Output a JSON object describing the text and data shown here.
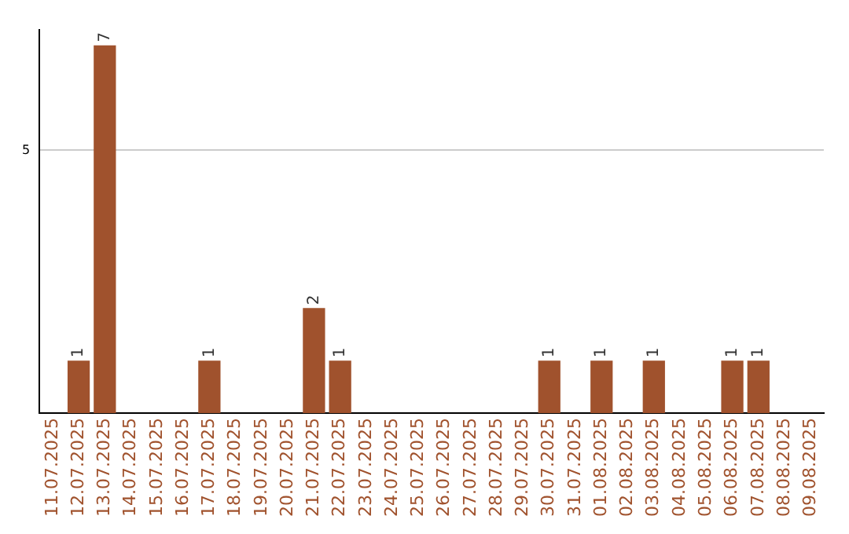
{
  "chart_data": {
    "type": "bar",
    "categories": [
      "11.07.2025",
      "12.07.2025",
      "13.07.2025",
      "14.07.2025",
      "15.07.2025",
      "16.07.2025",
      "17.07.2025",
      "18.07.2025",
      "19.07.2025",
      "20.07.2025",
      "21.07.2025",
      "22.07.2025",
      "23.07.2025",
      "24.07.2025",
      "25.07.2025",
      "26.07.2025",
      "27.07.2025",
      "28.07.2025",
      "29.07.2025",
      "30.07.2025",
      "31.07.2025",
      "01.08.2025",
      "02.08.2025",
      "03.08.2025",
      "04.08.2025",
      "05.08.2025",
      "06.08.2025",
      "07.08.2025",
      "08.08.2025",
      "09.08.2025"
    ],
    "values": [
      null,
      1,
      7,
      null,
      null,
      null,
      1,
      null,
      null,
      null,
      2,
      1,
      null,
      null,
      null,
      null,
      null,
      null,
      null,
      1,
      null,
      1,
      null,
      1,
      null,
      null,
      1,
      1,
      null,
      null
    ],
    "color": "#a0522d",
    "ylim": [
      0,
      7.3
    ],
    "yticks": [
      5
    ],
    "grid": "y",
    "data_labels": true,
    "legend": false
  }
}
